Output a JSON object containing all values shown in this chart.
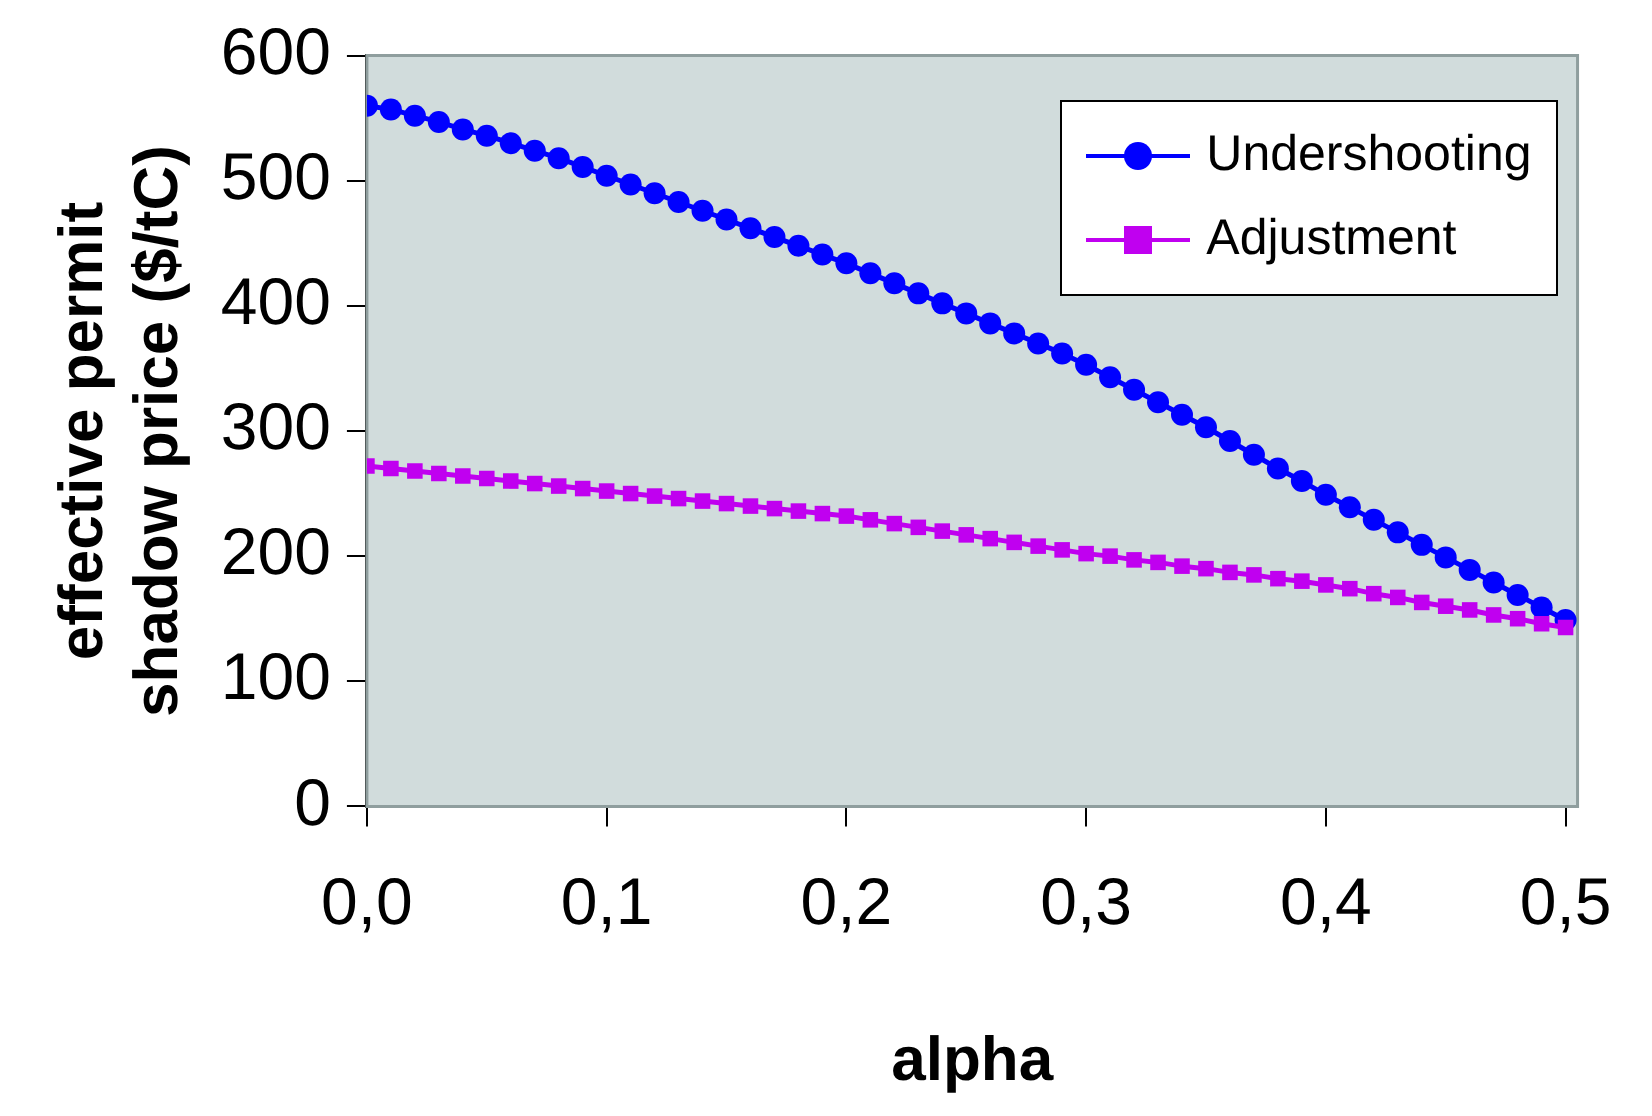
{
  "chart_data": {
    "type": "line",
    "xlabel": "alpha",
    "ylabel": "effective permit\nshadow price ($/tC)",
    "x": [
      0,
      0.01,
      0.02,
      0.03,
      0.04,
      0.05,
      0.06,
      0.07,
      0.08,
      0.09,
      0.1,
      0.11,
      0.12,
      0.13,
      0.14,
      0.15,
      0.16,
      0.17,
      0.18,
      0.19,
      0.2,
      0.21,
      0.22,
      0.23,
      0.24,
      0.25,
      0.26,
      0.27,
      0.28,
      0.29,
      0.3,
      0.31,
      0.32,
      0.33,
      0.34,
      0.35,
      0.36,
      0.37,
      0.38,
      0.39,
      0.4,
      0.41,
      0.42,
      0.43,
      0.44,
      0.45,
      0.46,
      0.47,
      0.48,
      0.49,
      0.5
    ],
    "series": [
      {
        "name": "Undershooting",
        "color": "#0000ff",
        "marker": "circle",
        "values": [
          560,
          557,
          552,
          547,
          541,
          536,
          530,
          524,
          518,
          511,
          504,
          497,
          490,
          483,
          476,
          469,
          462,
          455,
          448,
          441,
          434,
          426,
          418,
          410,
          402,
          394,
          386,
          378,
          370,
          362,
          353,
          343,
          333,
          323,
          313,
          303,
          292,
          281,
          270,
          260,
          249,
          239,
          229,
          219,
          209,
          199,
          189,
          179,
          169,
          159,
          149
        ]
      },
      {
        "name": "Adjustment",
        "color": "#c000f0",
        "marker": "square",
        "values": [
          272,
          270,
          268,
          266,
          264,
          262,
          260,
          258,
          256,
          254,
          252,
          250,
          248,
          246,
          244,
          242,
          240,
          238,
          236,
          234,
          232,
          229,
          226,
          223,
          220,
          217,
          214,
          211,
          208,
          205,
          202,
          200,
          197,
          195,
          192,
          190,
          187,
          185,
          182,
          180,
          177,
          174,
          170,
          167,
          163,
          160,
          157,
          153,
          150,
          146,
          143
        ]
      }
    ],
    "xlim": [
      0,
      0.505
    ],
    "xticks": [
      {
        "value": 0,
        "label": "0,0"
      },
      {
        "value": 0.1,
        "label": "0,1"
      },
      {
        "value": 0.2,
        "label": "0,2"
      },
      {
        "value": 0.3,
        "label": "0,3"
      },
      {
        "value": 0.4,
        "label": "0,4"
      },
      {
        "value": 0.5,
        "label": "0,5"
      }
    ],
    "ylim": [
      0,
      600
    ],
    "yticks": [
      0,
      100,
      200,
      300,
      400,
      500,
      600
    ],
    "legend": "top right"
  }
}
